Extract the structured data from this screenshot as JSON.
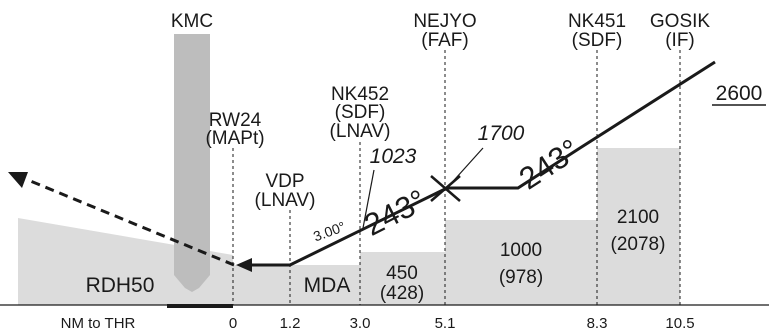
{
  "waypoints": {
    "kmc": "KMC",
    "rw24_name": "RW24",
    "rw24_role": "(MAPt)",
    "vdp_name": "VDP",
    "vdp_role": "(LNAV)",
    "nk452_name": "NK452",
    "nk452_role": "(SDF)",
    "nk452_role2": "(LNAV)",
    "nejyo_name": "NEJYO",
    "nejyo_role": "(FAF)",
    "nk451_name": "NK451",
    "nk451_role": "(SDF)",
    "gosik_name": "GOSIK",
    "gosik_role": "(IF)"
  },
  "altitudes": {
    "if_altitude": "2600",
    "faf_altitude": "1700",
    "sdf_altitude": "1023"
  },
  "courses": {
    "final_course": "243°",
    "intermediate_course": "243°",
    "glidepath": "3.00°"
  },
  "minimums": {
    "rdh": "RDH50",
    "mda": "MDA",
    "seg1_alt": "450",
    "seg1_hat": "(428)",
    "seg2_alt": "1000",
    "seg2_hat": "(978)",
    "seg3_alt": "2100",
    "seg3_hat": "(2078)"
  },
  "distance_axis": {
    "label": "NM to THR",
    "ticks": [
      "0",
      "1.2",
      "3.0",
      "5.1",
      "8.3",
      "10.5"
    ]
  }
}
